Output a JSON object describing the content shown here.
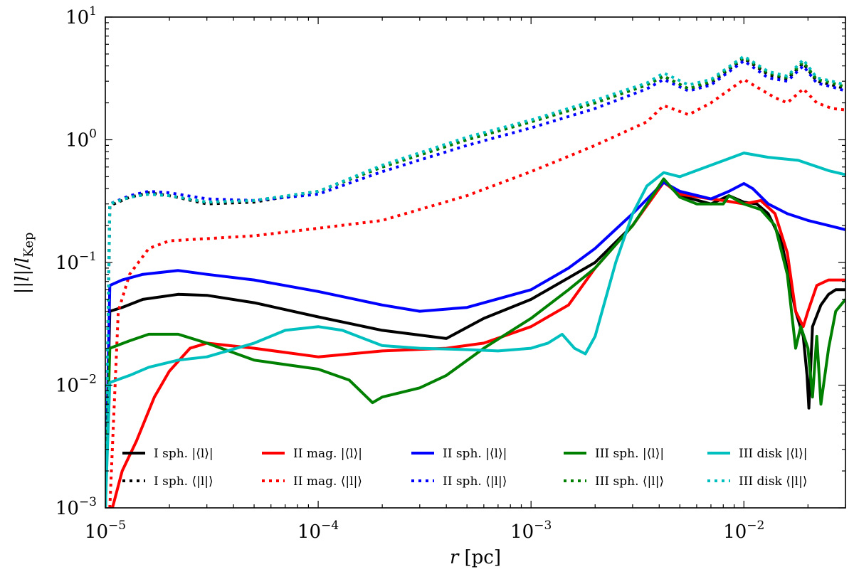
{
  "chart_data": {
    "type": "line",
    "xscale": "log",
    "yscale": "log",
    "xlim": [
      1e-05,
      0.03
    ],
    "ylim": [
      0.001,
      10
    ],
    "xlabel_var": "r",
    "xlabel_unit": "[pc]",
    "ylabel": "|l|/l_Kep",
    "x_ticks": [
      {
        "base": "10",
        "exp": "−5",
        "value": 1e-05
      },
      {
        "base": "10",
        "exp": "−4",
        "value": 0.0001
      },
      {
        "base": "10",
        "exp": "−3",
        "value": 0.001
      },
      {
        "base": "10",
        "exp": "−2",
        "value": 0.01
      }
    ],
    "y_ticks": [
      {
        "base": "10",
        "exp": "−3",
        "value": 0.001
      },
      {
        "base": "10",
        "exp": "−2",
        "value": 0.01
      },
      {
        "base": "10",
        "exp": "−1",
        "value": 0.1
      },
      {
        "base": "10",
        "exp": "0",
        "value": 1
      },
      {
        "base": "10",
        "exp": "1",
        "value": 10
      }
    ],
    "legend_position": "bottom",
    "series": [
      {
        "name": "I sph. |⟨l⟩|",
        "color": "#000000",
        "style": "solid",
        "points": [
          [
            1e-05,
            0.001
          ],
          [
            1.05e-05,
            0.04
          ],
          [
            1.2e-05,
            0.043
          ],
          [
            1.5e-05,
            0.05
          ],
          [
            2.2e-05,
            0.055
          ],
          [
            3e-05,
            0.054
          ],
          [
            5e-05,
            0.047
          ],
          [
            0.0001,
            0.036
          ],
          [
            0.0002,
            0.028
          ],
          [
            0.0004,
            0.024
          ],
          [
            0.0006,
            0.035
          ],
          [
            0.001,
            0.05
          ],
          [
            0.0015,
            0.075
          ],
          [
            0.002,
            0.1
          ],
          [
            0.003,
            0.2
          ],
          [
            0.0042,
            0.46
          ],
          [
            0.005,
            0.35
          ],
          [
            0.007,
            0.3
          ],
          [
            0.0085,
            0.35
          ],
          [
            0.01,
            0.31
          ],
          [
            0.0115,
            0.3
          ],
          [
            0.013,
            0.25
          ],
          [
            0.015,
            0.15
          ],
          [
            0.0175,
            0.04
          ],
          [
            0.019,
            0.025
          ],
          [
            0.0198,
            0.012
          ],
          [
            0.0202,
            0.0065
          ],
          [
            0.021,
            0.03
          ],
          [
            0.023,
            0.045
          ],
          [
            0.025,
            0.055
          ],
          [
            0.027,
            0.06
          ],
          [
            0.03,
            0.06
          ]
        ]
      },
      {
        "name": "I sph. ⟨|l|⟩",
        "color": "#000000",
        "style": "dotted",
        "points": [
          [
            1e-05,
            0.001
          ],
          [
            1.05e-05,
            0.29
          ],
          [
            1.3e-05,
            0.34
          ],
          [
            1.6e-05,
            0.37
          ],
          [
            2e-05,
            0.35
          ],
          [
            3e-05,
            0.3
          ],
          [
            5e-05,
            0.31
          ],
          [
            0.0001,
            0.38
          ],
          [
            0.0002,
            0.6
          ],
          [
            0.0005,
            1.0
          ],
          [
            0.001,
            1.4
          ],
          [
            0.002,
            2.0
          ],
          [
            0.0035,
            2.8
          ],
          [
            0.0042,
            3.3
          ],
          [
            0.0055,
            2.6
          ],
          [
            0.007,
            2.9
          ],
          [
            0.01,
            4.6
          ],
          [
            0.013,
            3.4
          ],
          [
            0.016,
            3.1
          ],
          [
            0.019,
            4.2
          ],
          [
            0.022,
            3.0
          ],
          [
            0.026,
            2.8
          ],
          [
            0.03,
            2.6
          ]
        ]
      },
      {
        "name": "II mag. |⟨l⟩|",
        "color": "#ff0000",
        "style": "solid",
        "points": [
          [
            1.08e-05,
            0.001
          ],
          [
            1.2e-05,
            0.002
          ],
          [
            1.4e-05,
            0.0035
          ],
          [
            1.7e-05,
            0.008
          ],
          [
            2e-05,
            0.013
          ],
          [
            2.5e-05,
            0.02
          ],
          [
            3e-05,
            0.022
          ],
          [
            5e-05,
            0.02
          ],
          [
            0.0001,
            0.017
          ],
          [
            0.0002,
            0.019
          ],
          [
            0.0004,
            0.02
          ],
          [
            0.0006,
            0.022
          ],
          [
            0.001,
            0.03
          ],
          [
            0.0015,
            0.045
          ],
          [
            0.002,
            0.09
          ],
          [
            0.003,
            0.2
          ],
          [
            0.0042,
            0.45
          ],
          [
            0.005,
            0.36
          ],
          [
            0.007,
            0.33
          ],
          [
            0.008,
            0.32
          ],
          [
            0.01,
            0.3
          ],
          [
            0.012,
            0.32
          ],
          [
            0.014,
            0.25
          ],
          [
            0.016,
            0.12
          ],
          [
            0.0175,
            0.04
          ],
          [
            0.019,
            0.03
          ],
          [
            0.02,
            0.04
          ],
          [
            0.022,
            0.065
          ],
          [
            0.025,
            0.072
          ],
          [
            0.03,
            0.072
          ]
        ]
      },
      {
        "name": "II mag. ⟨|l|⟩",
        "color": "#ff0000",
        "style": "dotted",
        "points": [
          [
            1.05e-05,
            0.001
          ],
          [
            1.15e-05,
            0.04
          ],
          [
            1.3e-05,
            0.08
          ],
          [
            1.6e-05,
            0.13
          ],
          [
            2e-05,
            0.15
          ],
          [
            5e-05,
            0.165
          ],
          [
            0.0001,
            0.19
          ],
          [
            0.0002,
            0.22
          ],
          [
            0.0005,
            0.35
          ],
          [
            0.001,
            0.55
          ],
          [
            0.002,
            0.9
          ],
          [
            0.0035,
            1.4
          ],
          [
            0.0042,
            1.9
          ],
          [
            0.0055,
            1.6
          ],
          [
            0.007,
            2.0
          ],
          [
            0.01,
            3.1
          ],
          [
            0.014,
            2.2
          ],
          [
            0.016,
            2.0
          ],
          [
            0.019,
            2.6
          ],
          [
            0.022,
            2.0
          ],
          [
            0.026,
            1.8
          ],
          [
            0.03,
            1.75
          ]
        ]
      },
      {
        "name": "II sph. |⟨l⟩|",
        "color": "#0000ff",
        "style": "solid",
        "points": [
          [
            1e-05,
            0.001
          ],
          [
            1.05e-05,
            0.065
          ],
          [
            1.2e-05,
            0.072
          ],
          [
            1.5e-05,
            0.08
          ],
          [
            2.2e-05,
            0.086
          ],
          [
            3e-05,
            0.08
          ],
          [
            5e-05,
            0.072
          ],
          [
            0.0001,
            0.058
          ],
          [
            0.0002,
            0.045
          ],
          [
            0.0003,
            0.04
          ],
          [
            0.0005,
            0.043
          ],
          [
            0.001,
            0.06
          ],
          [
            0.0015,
            0.09
          ],
          [
            0.002,
            0.13
          ],
          [
            0.003,
            0.25
          ],
          [
            0.0042,
            0.45
          ],
          [
            0.005,
            0.38
          ],
          [
            0.007,
            0.33
          ],
          [
            0.0085,
            0.38
          ],
          [
            0.01,
            0.44
          ],
          [
            0.011,
            0.4
          ],
          [
            0.013,
            0.3
          ],
          [
            0.016,
            0.25
          ],
          [
            0.02,
            0.22
          ],
          [
            0.025,
            0.2
          ],
          [
            0.03,
            0.185
          ]
        ]
      },
      {
        "name": "II sph. ⟨|l|⟩",
        "color": "#0000ff",
        "style": "dotted",
        "points": [
          [
            1e-05,
            0.001
          ],
          [
            1.05e-05,
            0.3
          ],
          [
            1.3e-05,
            0.35
          ],
          [
            1.6e-05,
            0.38
          ],
          [
            2e-05,
            0.37
          ],
          [
            3e-05,
            0.33
          ],
          [
            5e-05,
            0.32
          ],
          [
            0.0001,
            0.36
          ],
          [
            0.0002,
            0.55
          ],
          [
            0.0005,
            0.9
          ],
          [
            0.001,
            1.25
          ],
          [
            0.002,
            1.8
          ],
          [
            0.0035,
            2.6
          ],
          [
            0.0042,
            3.1
          ],
          [
            0.0055,
            2.5
          ],
          [
            0.007,
            2.8
          ],
          [
            0.01,
            4.4
          ],
          [
            0.013,
            3.2
          ],
          [
            0.016,
            3.0
          ],
          [
            0.019,
            4.0
          ],
          [
            0.022,
            2.9
          ],
          [
            0.026,
            2.7
          ],
          [
            0.03,
            2.5
          ]
        ]
      },
      {
        "name": "III sph. |⟨l⟩|",
        "color": "#008000",
        "style": "solid",
        "points": [
          [
            1e-05,
            0.001
          ],
          [
            1.05e-05,
            0.02
          ],
          [
            1.3e-05,
            0.023
          ],
          [
            1.6e-05,
            0.026
          ],
          [
            2.2e-05,
            0.026
          ],
          [
            3e-05,
            0.022
          ],
          [
            5e-05,
            0.016
          ],
          [
            0.0001,
            0.0135
          ],
          [
            0.00014,
            0.011
          ],
          [
            0.00018,
            0.0072
          ],
          [
            0.0002,
            0.008
          ],
          [
            0.0003,
            0.0095
          ],
          [
            0.0004,
            0.012
          ],
          [
            0.0006,
            0.02
          ],
          [
            0.001,
            0.035
          ],
          [
            0.0015,
            0.06
          ],
          [
            0.002,
            0.09
          ],
          [
            0.003,
            0.2
          ],
          [
            0.0042,
            0.48
          ],
          [
            0.005,
            0.34
          ],
          [
            0.006,
            0.3
          ],
          [
            0.008,
            0.3
          ],
          [
            0.0085,
            0.35
          ],
          [
            0.01,
            0.3
          ],
          [
            0.012,
            0.27
          ],
          [
            0.014,
            0.2
          ],
          [
            0.016,
            0.08
          ],
          [
            0.0175,
            0.02
          ],
          [
            0.0185,
            0.03
          ],
          [
            0.02,
            0.02
          ],
          [
            0.021,
            0.008
          ],
          [
            0.022,
            0.025
          ],
          [
            0.023,
            0.007
          ],
          [
            0.025,
            0.02
          ],
          [
            0.027,
            0.04
          ],
          [
            0.03,
            0.05
          ]
        ]
      },
      {
        "name": "III sph. ⟨|l|⟩",
        "color": "#008000",
        "style": "dotted",
        "points": [
          [
            1e-05,
            0.001
          ],
          [
            1.05e-05,
            0.3
          ],
          [
            1.3e-05,
            0.34
          ],
          [
            1.6e-05,
            0.36
          ],
          [
            2e-05,
            0.35
          ],
          [
            3e-05,
            0.31
          ],
          [
            5e-05,
            0.32
          ],
          [
            0.0001,
            0.38
          ],
          [
            0.0002,
            0.6
          ],
          [
            0.0005,
            1.0
          ],
          [
            0.001,
            1.4
          ],
          [
            0.002,
            2.0
          ],
          [
            0.0035,
            2.8
          ],
          [
            0.0042,
            3.3
          ],
          [
            0.0055,
            2.6
          ],
          [
            0.007,
            3.0
          ],
          [
            0.01,
            4.7
          ],
          [
            0.013,
            3.5
          ],
          [
            0.016,
            3.2
          ],
          [
            0.019,
            4.3
          ],
          [
            0.022,
            3.1
          ],
          [
            0.026,
            2.9
          ],
          [
            0.03,
            2.7
          ]
        ]
      },
      {
        "name": "III disk |⟨l⟩|",
        "color": "#00bfbf",
        "style": "solid",
        "points": [
          [
            1e-05,
            0.001
          ],
          [
            1.05e-05,
            0.0105
          ],
          [
            1.3e-05,
            0.012
          ],
          [
            1.6e-05,
            0.014
          ],
          [
            2.2e-05,
            0.016
          ],
          [
            3e-05,
            0.017
          ],
          [
            5e-05,
            0.022
          ],
          [
            7e-05,
            0.028
          ],
          [
            0.0001,
            0.03
          ],
          [
            0.00013,
            0.028
          ],
          [
            0.0002,
            0.021
          ],
          [
            0.0003,
            0.02
          ],
          [
            0.0005,
            0.0195
          ],
          [
            0.0007,
            0.019
          ],
          [
            0.001,
            0.02
          ],
          [
            0.0012,
            0.022
          ],
          [
            0.0014,
            0.026
          ],
          [
            0.0016,
            0.02
          ],
          [
            0.0018,
            0.018
          ],
          [
            0.002,
            0.025
          ],
          [
            0.0025,
            0.1
          ],
          [
            0.003,
            0.25
          ],
          [
            0.0035,
            0.42
          ],
          [
            0.0042,
            0.54
          ],
          [
            0.005,
            0.5
          ],
          [
            0.007,
            0.62
          ],
          [
            0.01,
            0.78
          ],
          [
            0.013,
            0.72
          ],
          [
            0.018,
            0.68
          ],
          [
            0.025,
            0.56
          ],
          [
            0.03,
            0.52
          ]
        ]
      },
      {
        "name": "III disk ⟨|l|⟩",
        "color": "#00bfbf",
        "style": "dotted",
        "points": [
          [
            1e-05,
            0.001
          ],
          [
            1.05e-05,
            0.3
          ],
          [
            1.3e-05,
            0.34
          ],
          [
            1.6e-05,
            0.36
          ],
          [
            2e-05,
            0.35
          ],
          [
            3e-05,
            0.31
          ],
          [
            5e-05,
            0.32
          ],
          [
            0.0001,
            0.38
          ],
          [
            0.0002,
            0.62
          ],
          [
            0.0005,
            1.05
          ],
          [
            0.001,
            1.45
          ],
          [
            0.002,
            2.1
          ],
          [
            0.0035,
            2.9
          ],
          [
            0.0042,
            3.5
          ],
          [
            0.0055,
            2.8
          ],
          [
            0.007,
            3.1
          ],
          [
            0.01,
            4.8
          ],
          [
            0.013,
            3.6
          ],
          [
            0.016,
            3.3
          ],
          [
            0.019,
            4.5
          ],
          [
            0.022,
            3.2
          ],
          [
            0.026,
            3.0
          ],
          [
            0.03,
            2.8
          ]
        ]
      }
    ]
  }
}
